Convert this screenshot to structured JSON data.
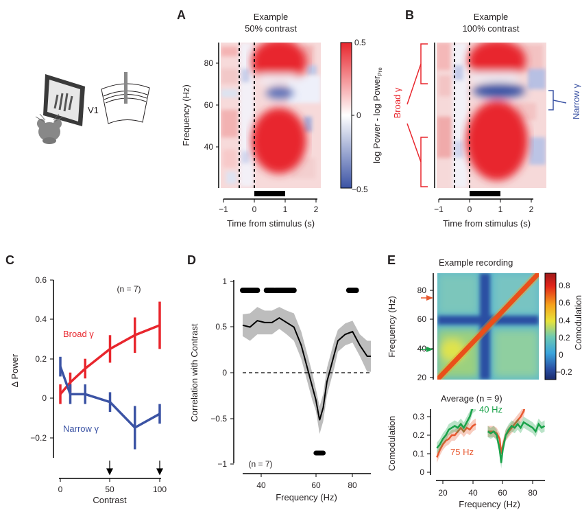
{
  "panels": {
    "A": {
      "letter": "A",
      "title1": "Example",
      "title2": "50% contrast",
      "ylabel": "Frequency (Hz)",
      "xlabel": "Time from stimulus (s)",
      "yticks": [
        "40",
        "60",
        "80"
      ],
      "xticks": [
        "−1",
        "0",
        "1",
        "2"
      ],
      "colorbar_label": "log Power - log Power",
      "colorbar_label_sub": "Pre",
      "colorbar_ticks": [
        "0.5",
        "0",
        "−0.5"
      ]
    },
    "B": {
      "letter": "B",
      "title1": "Example",
      "title2": "100% contrast",
      "xlabel": "Time from stimulus (s)",
      "xticks": [
        "−1",
        "0",
        "1",
        "2"
      ],
      "broad_label": "Broad γ",
      "narrow_label": "Narrow γ"
    },
    "C": {
      "letter": "C",
      "ylabel": "Δ Power",
      "xlabel": "Contrast",
      "n_label": "(n = 7)",
      "yticks": [
        "−0.2",
        "0",
        "0.2",
        "0.4",
        "0.6"
      ],
      "xticks": [
        "0",
        "50",
        "100"
      ]
    },
    "D": {
      "letter": "D",
      "ylabel": "Correlation with Contrast",
      "xlabel": "Frequency (Hz)",
      "n_label": "(n = 7)",
      "yticks": [
        "−1",
        "−0.5",
        "0",
        "0.5",
        "1"
      ],
      "xticks": [
        "40",
        "60",
        "80"
      ]
    },
    "E": {
      "letter": "E",
      "title": "Example recording",
      "ylabel": "Frequency (Hz)",
      "yticks": [
        "20",
        "40",
        "60",
        "80"
      ],
      "colorbar_label": "Comodulation",
      "colorbar_ticks": [
        "0.8",
        "0.6",
        "0.4",
        "0.2",
        "0",
        "−0.2"
      ],
      "avg_title": "Average (n = 9)",
      "avg_ylabel": "Comodulation",
      "avg_xlabel": "Frequency (Hz)",
      "avg_yticks": [
        "0",
        "0.1",
        "0.2",
        "0.3"
      ],
      "avg_xticks": [
        "20",
        "40",
        "60",
        "80"
      ],
      "label_40": "40 Hz",
      "label_75": "75 Hz"
    },
    "schematic": {
      "area_label": "V1"
    }
  },
  "colors": {
    "red": "#e8262d",
    "blue": "#3b53a4",
    "green": "#1aa24a",
    "orange": "#e8582f",
    "gray_band": "#bdbdbd"
  },
  "chart_data": [
    {
      "id": "A",
      "type": "heatmap",
      "xlim": [
        -1,
        2.4
      ],
      "ylim": [
        20,
        90
      ],
      "colorbar_range": [
        -0.5,
        0.5
      ],
      "stimulus_bar": [
        0,
        1
      ],
      "dashed_lines_x": [
        -0.4,
        0
      ],
      "blobs": [
        {
          "t": [
            0,
            1.2
          ],
          "f": [
            70,
            90
          ],
          "value": 0.5
        },
        {
          "t": [
            0,
            1.2
          ],
          "f": [
            35,
            60
          ],
          "value": 0.5
        },
        {
          "t": [
            0.3,
            0.9
          ],
          "f": [
            62,
            68
          ],
          "value": -0.3
        }
      ]
    },
    {
      "id": "B",
      "type": "heatmap",
      "xlim": [
        -1,
        2.4
      ],
      "ylim": [
        20,
        90
      ],
      "colorbar_range": [
        -0.5,
        0.5
      ],
      "stimulus_bar": [
        0,
        1
      ],
      "dashed_lines_x": [
        -0.4,
        0
      ],
      "blobs": [
        {
          "t": [
            0,
            1.2
          ],
          "f": [
            70,
            90
          ],
          "value": 0.5
        },
        {
          "t": [
            0,
            1.2
          ],
          "f": [
            20,
            57
          ],
          "value": 0.5
        },
        {
          "t": [
            0.1,
            1.3
          ],
          "f": [
            58,
            68
          ],
          "value": -0.5
        }
      ]
    },
    {
      "id": "C",
      "type": "line",
      "x": [
        0,
        10,
        25,
        50,
        75,
        100
      ],
      "xlim": [
        0,
        100
      ],
      "ylim": [
        -0.3,
        0.6
      ],
      "series": [
        {
          "name": "Broad γ",
          "color": "#e8262d",
          "values": [
            0.02,
            0.08,
            0.15,
            0.25,
            0.32,
            0.37
          ],
          "err": [
            0.05,
            0.05,
            0.05,
            0.07,
            0.09,
            0.12
          ]
        },
        {
          "name": "Narrow γ",
          "color": "#3b53a4",
          "values": [
            0.16,
            0.02,
            0.02,
            -0.02,
            -0.15,
            -0.08
          ],
          "err": [
            0.05,
            0.05,
            0.05,
            0.05,
            0.11,
            0.05
          ]
        }
      ],
      "arrows_x": [
        50,
        100
      ]
    },
    {
      "id": "D",
      "type": "line",
      "xlim": [
        20,
        90
      ],
      "ylim": [
        -1,
        1
      ],
      "x": [
        20,
        24,
        28,
        32,
        36,
        40,
        44,
        48,
        52,
        56,
        58,
        60,
        62,
        64,
        66,
        68,
        70,
        72,
        76,
        80,
        84,
        88,
        90
      ],
      "values": [
        0.52,
        0.5,
        0.57,
        0.55,
        0.55,
        0.6,
        0.55,
        0.5,
        0.3,
        0.0,
        -0.15,
        -0.3,
        -0.52,
        -0.38,
        -0.1,
        0.05,
        0.2,
        0.35,
        0.42,
        0.45,
        0.3,
        0.18,
        0.18
      ],
      "ci": [
        0.12,
        0.15,
        0.15,
        0.13,
        0.13,
        0.12,
        0.13,
        0.15,
        0.15,
        0.15,
        0.15,
        0.12,
        0.15,
        0.15,
        0.15,
        0.15,
        0.15,
        0.12,
        0.12,
        0.12,
        0.12,
        0.17,
        0.17
      ],
      "significant_ranges_top": [
        [
          20,
          28
        ],
        [
          33,
          37
        ],
        [
          38,
          48
        ],
        [
          78,
          82
        ]
      ],
      "significant_ranges_bottom": [
        [
          60,
          64
        ]
      ],
      "zero_line": 0
    },
    {
      "id": "E-matrix",
      "type": "heatmap",
      "xlim": [
        15,
        90
      ],
      "ylim": [
        20,
        90
      ],
      "colorbar_range": [
        -0.3,
        0.9
      ],
      "arrows_y": [
        {
          "f": 75,
          "color": "#e8582f"
        },
        {
          "f": 40,
          "color": "#1aa24a"
        }
      ]
    },
    {
      "id": "E-average",
      "type": "line",
      "xlim": [
        15,
        88
      ],
      "ylim": [
        0,
        0.35
      ],
      "series": [
        {
          "name": "40 Hz",
          "color": "#1aa24a",
          "x": [
            16,
            18,
            20,
            22,
            24,
            26,
            28,
            30,
            32,
            34,
            36,
            38,
            40,
            42,
            50,
            52,
            54,
            56,
            58,
            59,
            60,
            62,
            64,
            66,
            68,
            70,
            72,
            74,
            76,
            78,
            80,
            82,
            84,
            86,
            88
          ],
          "values": [
            0.13,
            0.15,
            0.18,
            0.2,
            0.23,
            0.24,
            0.25,
            0.24,
            0.26,
            0.24,
            0.27,
            0.3,
            0.35,
            0.36,
            0.22,
            0.21,
            0.22,
            0.2,
            0.12,
            0.05,
            0.12,
            0.2,
            0.23,
            0.25,
            0.24,
            0.26,
            0.24,
            0.27,
            0.26,
            0.25,
            0.24,
            0.22,
            0.26,
            0.24,
            0.25
          ]
        },
        {
          "name": "75 Hz",
          "color": "#e8582f",
          "x": [
            16,
            18,
            20,
            22,
            24,
            26,
            28,
            30,
            32,
            34,
            36,
            38,
            40,
            42,
            50,
            52,
            54,
            56,
            58,
            59,
            60,
            62,
            64,
            66,
            68,
            70,
            72,
            74,
            75
          ],
          "values": [
            0.08,
            0.12,
            0.15,
            0.17,
            0.18,
            0.2,
            0.2,
            0.22,
            0.24,
            0.22,
            0.24,
            0.23,
            0.25,
            0.26,
            0.22,
            0.22,
            0.22,
            0.21,
            0.18,
            0.1,
            0.14,
            0.2,
            0.22,
            0.24,
            0.26,
            0.28,
            0.3,
            0.33,
            0.36
          ]
        }
      ]
    }
  ]
}
